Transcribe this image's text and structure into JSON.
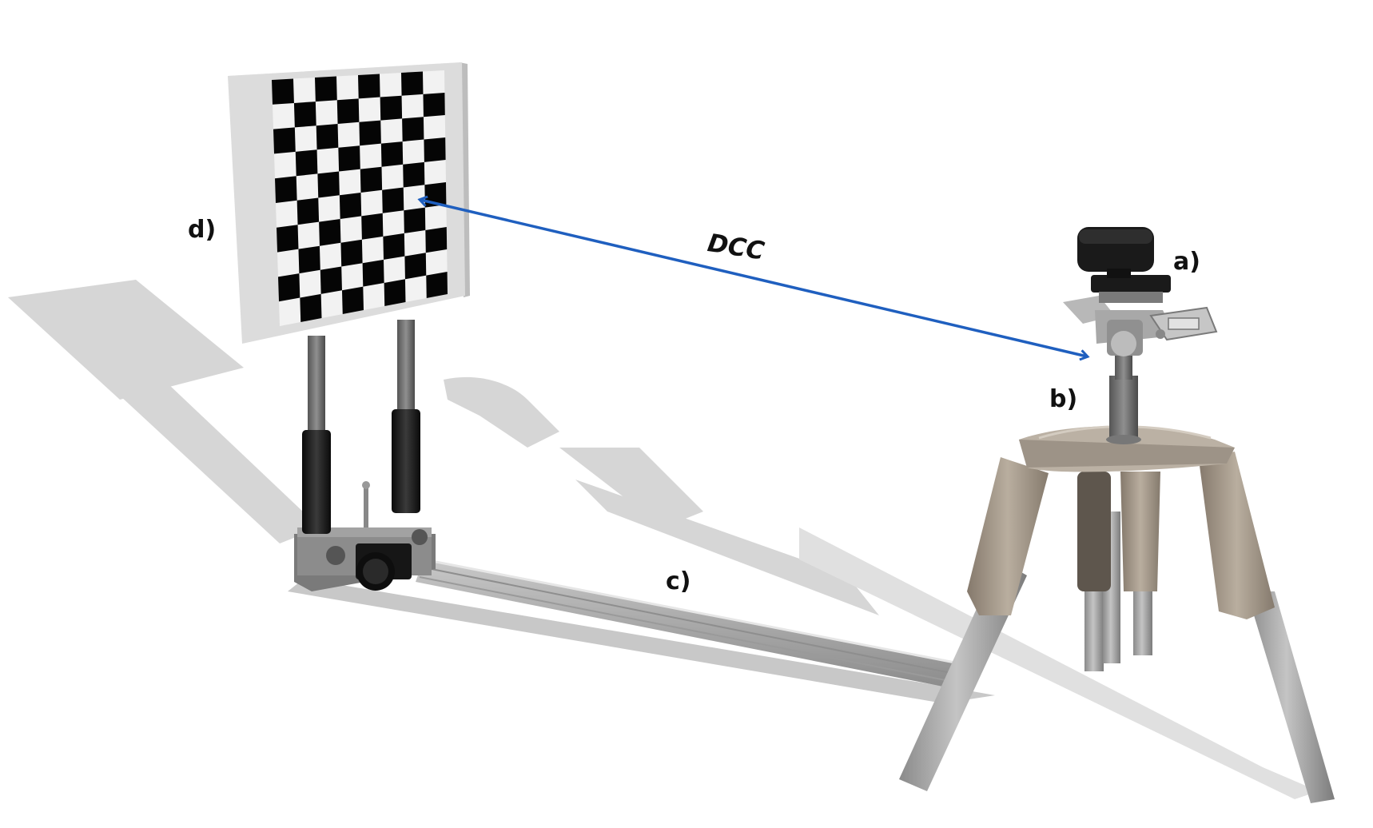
{
  "labels": {
    "a": "a)",
    "b": "b)",
    "c": "c)",
    "d": "d)",
    "distance": "DCC"
  },
  "colors": {
    "arrow": "#1f5fbf",
    "board_frame": "#dcdcdc",
    "checker_dark": "#050505",
    "checker_light": "#f2f2f2",
    "tripod_head": "#a49a8e",
    "tripod_leg": "#a0a0a0",
    "rail": "#b5b5b5",
    "shadow": "#d4d4d4",
    "camera": "#1a1a1a"
  },
  "icons": {
    "camera": "depth-camera-icon",
    "target": "checkerboard-target-icon"
  }
}
